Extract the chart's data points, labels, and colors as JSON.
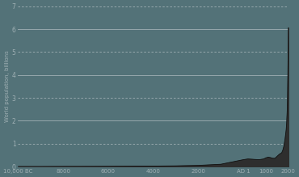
{
  "ylabel": "World population, billions",
  "background_color": "#537278",
  "fill_color": "#2e2e2e",
  "line_color": "#111111",
  "ylim": [
    0,
    7
  ],
  "yticks": [
    0,
    1,
    2,
    3,
    4,
    5,
    6,
    7
  ],
  "solid_gridlines": [
    2,
    4,
    6
  ],
  "dashed_gridlines": [
    1,
    3,
    5,
    7
  ],
  "xtick_labels": [
    "10,000 BC",
    "8000",
    "6000",
    "4000",
    "2000",
    "AD 1",
    "1000",
    "2000"
  ],
  "xtick_positions": [
    -10000,
    -8000,
    -6000,
    -4000,
    -2000,
    1,
    1000,
    2000
  ],
  "xlim": [
    -10000,
    2000
  ],
  "population_data": [
    [
      -10000,
      0.001
    ],
    [
      -9000,
      0.001
    ],
    [
      -8000,
      0.005
    ],
    [
      -7000,
      0.007
    ],
    [
      -6000,
      0.01
    ],
    [
      -5000,
      0.015
    ],
    [
      -4000,
      0.02
    ],
    [
      -3000,
      0.03
    ],
    [
      -2000,
      0.05
    ],
    [
      -1000,
      0.1
    ],
    [
      1,
      0.3
    ],
    [
      200,
      0.33
    ],
    [
      500,
      0.31
    ],
    [
      700,
      0.3
    ],
    [
      900,
      0.33
    ],
    [
      1000,
      0.38
    ],
    [
      1100,
      0.41
    ],
    [
      1200,
      0.39
    ],
    [
      1300,
      0.36
    ],
    [
      1400,
      0.36
    ],
    [
      1500,
      0.45
    ],
    [
      1600,
      0.54
    ],
    [
      1700,
      0.6
    ],
    [
      1750,
      0.71
    ],
    [
      1800,
      0.9
    ],
    [
      1850,
      1.2
    ],
    [
      1900,
      1.6
    ],
    [
      1920,
      1.86
    ],
    [
      1930,
      2.07
    ],
    [
      1940,
      2.3
    ],
    [
      1950,
      2.52
    ],
    [
      1960,
      3.02
    ],
    [
      1970,
      3.7
    ],
    [
      1980,
      4.43
    ],
    [
      1990,
      5.26
    ],
    [
      2000,
      6.06
    ]
  ],
  "gridline_color": "#a0b0b4",
  "solid_lw": 0.6,
  "dash_lw": 0.6,
  "ylabel_fontsize": 5.0,
  "ytick_fontsize": 5.5,
  "xtick_fontsize": 5.0
}
